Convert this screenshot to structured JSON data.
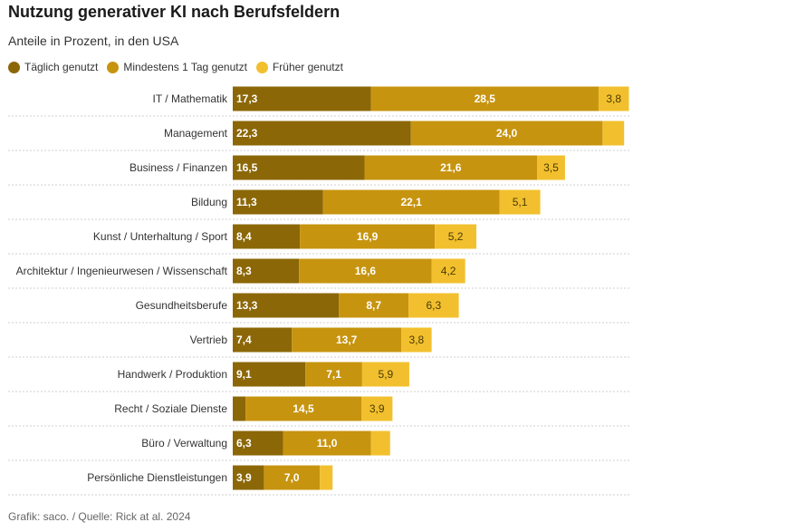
{
  "title": "Nutzung generativer KI nach Berufsfeldern",
  "subtitle": "Anteile in Prozent, in den USA",
  "footer": "Grafik: saco. / Quelle: Rick at al. 2024",
  "colors": {
    "daily": "#8B6707",
    "min1day": "#C7940F",
    "earlier": "#F2C02E",
    "grid": "#cfcfcf"
  },
  "chart_data": {
    "type": "bar",
    "orientation": "horizontal",
    "stacked": true,
    "title": "Nutzung generativer KI nach Berufsfeldern",
    "subtitle": "Anteile in Prozent, in den USA",
    "xlim": [
      0,
      50
    ],
    "categories": [
      "IT / Mathematik",
      "Management",
      "Business / Finanzen",
      "Bildung",
      "Kunst / Unterhaltung / Sport",
      "Architektur / Ingenieurwesen / Wissenschaft",
      "Gesundheitsberufe",
      "Vertrieb",
      "Handwerk / Produktion",
      "Recht / Soziale Dienste",
      "Büro / Verwaltung",
      "Persönliche Dienstleistungen"
    ],
    "series": [
      {
        "name": "Täglich genutzt",
        "values": [
          17.3,
          22.3,
          16.5,
          11.3,
          8.4,
          8.3,
          13.3,
          7.4,
          9.1,
          1.6,
          6.3,
          3.9
        ],
        "labels": [
          "17,3",
          "22,3",
          "16,5",
          "11,3",
          "8,4",
          "8,3",
          "13,3",
          "7,4",
          "9,1",
          "",
          "6,3",
          "3,9"
        ]
      },
      {
        "name": "Mindestens 1 Tag genutzt",
        "values": [
          28.5,
          24.0,
          21.6,
          22.1,
          16.9,
          16.6,
          8.7,
          13.7,
          7.1,
          14.5,
          11.0,
          7.0
        ],
        "labels": [
          "28,5",
          "24,0",
          "21,6",
          "22,1",
          "16,9",
          "16,6",
          "8,7",
          "13,7",
          "7,1",
          "14,5",
          "11,0",
          "7,0"
        ]
      },
      {
        "name": "Früher genutzt",
        "values": [
          3.8,
          2.7,
          3.5,
          5.1,
          5.2,
          4.2,
          6.3,
          3.8,
          5.9,
          3.9,
          2.4,
          1.6
        ],
        "labels": [
          "3,8",
          "",
          "3,5",
          "5,1",
          "5,2",
          "4,2",
          "6,3",
          "3,8",
          "5,9",
          "3,9",
          "",
          ""
        ]
      }
    ]
  }
}
